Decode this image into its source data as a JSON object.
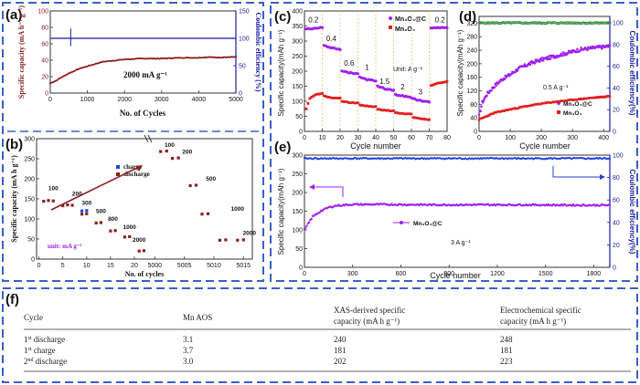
{
  "colors": {
    "frame_blue": "#3a5fc8",
    "dark_red": "#8b1a1a",
    "red": "#e02020",
    "purple": "#a020f0",
    "navy": "#1a1aa0",
    "blue": "#1f3fe0",
    "green": "#2e8b3a",
    "brown": "#8b2020"
  },
  "chart_data": [
    {
      "panel": "(a)",
      "type": "line",
      "xlabel": "No. of Cycles",
      "ylabel": "Specific capacity (mA h⁻¹ g⁻¹)",
      "y2label": "Coulombic efficiency (%)",
      "annotation": "2000 mA g⁻¹",
      "xlim": [
        0,
        5000
      ],
      "ylim": [
        0,
        100
      ],
      "y2lim": [
        0,
        150
      ],
      "xticks": [
        "0",
        "1000",
        "2000",
        "3000",
        "4000",
        "5000"
      ],
      "yticks": [
        "0",
        "20",
        "40",
        "60",
        "80",
        "100"
      ],
      "y2ticks": [
        "0",
        "50",
        "100",
        "150"
      ],
      "series": [
        {
          "name": "capacity",
          "x": [
            0,
            150,
            300,
            500,
            800,
            1100,
            1400,
            1600,
            1800,
            2000,
            2500,
            3000,
            3500,
            4000,
            4300,
            4500,
            4800,
            5000
          ],
          "values": [
            12,
            15,
            19,
            24,
            30,
            34,
            38,
            39,
            40,
            41,
            42,
            42,
            43,
            43,
            44,
            43,
            44,
            44
          ]
        },
        {
          "name": "efficiency",
          "x": [
            0,
            1000,
            2000,
            3000,
            4000,
            5000
          ],
          "values": [
            100,
            100,
            100,
            100,
            100,
            100
          ]
        }
      ]
    },
    {
      "panel": "(b)",
      "type": "scatter",
      "xlabel": "No. of cycles",
      "ylabel": "Specific capacity (mA h g⁻¹)",
      "unit_note": "unit: mA g⁻¹",
      "ylim": [
        0,
        300
      ],
      "xticks": [
        "0",
        "5",
        "10",
        "15",
        "20",
        "5000",
        "5005",
        "5010",
        "5015"
      ],
      "yticks": [
        "0",
        "50",
        "100",
        "150",
        "200",
        "250",
        "300"
      ],
      "legend": [
        "charge",
        "discharge"
      ],
      "rate_labels": [
        "100",
        "200",
        "300",
        "500",
        "800",
        "1000",
        "2000",
        "100",
        "200",
        "500",
        "1000",
        "2000"
      ],
      "series": [
        {
          "name": "discharge",
          "x": [
            1,
            2,
            3,
            5,
            6,
            7,
            9,
            10,
            12,
            13,
            15,
            16,
            18,
            19,
            21,
            22,
            5001,
            5002,
            5003,
            5004,
            5006,
            5007,
            5008,
            5009,
            5011,
            5012,
            5014,
            5015
          ],
          "values": [
            144,
            146,
            145,
            133,
            135,
            134,
            112,
            113,
            90,
            91,
            70,
            71,
            55,
            56,
            20,
            21,
            268,
            269,
            251,
            252,
            183,
            184,
            112,
            113,
            47,
            48,
            47,
            48
          ]
        },
        {
          "name": "charge",
          "x": [
            9,
            10
          ],
          "values": [
            110,
            111
          ]
        }
      ]
    },
    {
      "panel": "(c)",
      "type": "scatter",
      "xlabel": "Cycle number",
      "ylabel": "Specific capacity(mAh g⁻¹)",
      "annotation": "Unit: A g⁻¹",
      "xlim": [
        0,
        80
      ],
      "ylim": [
        0,
        400
      ],
      "xticks": [
        "0",
        "10",
        "20",
        "30",
        "40",
        "50",
        "60",
        "70",
        "80"
      ],
      "yticks": [
        "0",
        "50",
        "100",
        "150",
        "200",
        "250",
        "300",
        "350",
        "400"
      ],
      "rate_labels": [
        "0.2",
        "0.4",
        "0.6",
        "1",
        "1.5",
        "2",
        "3",
        "0.2"
      ],
      "series": [
        {
          "name": "Mn₃O₄@C",
          "x": [
            1,
            5,
            10,
            11,
            15,
            20,
            21,
            25,
            30,
            31,
            35,
            40,
            41,
            45,
            50,
            51,
            55,
            60,
            61,
            65,
            70,
            71,
            75,
            80
          ],
          "values": [
            340,
            342,
            345,
            285,
            278,
            272,
            200,
            195,
            192,
            180,
            172,
            168,
            150,
            142,
            137,
            122,
            118,
            112,
            108,
            102,
            98,
            342,
            344,
            345
          ]
        },
        {
          "name": "Mn₃O₄",
          "x": [
            1,
            3,
            6,
            10,
            11,
            15,
            20,
            21,
            25,
            30,
            31,
            35,
            40,
            41,
            45,
            50,
            51,
            55,
            60,
            61,
            65,
            70,
            71,
            75,
            80
          ],
          "values": [
            75,
            110,
            122,
            125,
            118,
            112,
            110,
            100,
            96,
            94,
            88,
            84,
            82,
            73,
            70,
            68,
            62,
            59,
            57,
            46,
            42,
            38,
            152,
            160,
            165
          ]
        }
      ]
    },
    {
      "panel": "(d)",
      "type": "scatter",
      "xlabel": "Cycle number",
      "ylabel": "Specific capacity(mAh g⁻¹)",
      "y2label": "Coulombic efficiency(%)",
      "annotation": "0.5 A g⁻¹",
      "xlim": [
        0,
        420
      ],
      "ylim": [
        0,
        340
      ],
      "y2lim": [
        0,
        106
      ],
      "xticks": [
        "0",
        "100",
        "200",
        "300",
        "400"
      ],
      "yticks": [
        "0",
        "40",
        "80",
        "120",
        "160",
        "200",
        "240",
        "280",
        "320"
      ],
      "y2ticks": [
        "0",
        "20",
        "40",
        "60",
        "80",
        "100"
      ],
      "series": [
        {
          "name": "Mn₃O₄@C",
          "x": [
            0,
            10,
            25,
            50,
            75,
            100,
            125,
            150,
            175,
            200,
            225,
            250,
            275,
            300,
            325,
            350,
            375,
            400,
            420
          ],
          "values": [
            45,
            85,
            110,
            135,
            155,
            168,
            185,
            195,
            205,
            212,
            218,
            224,
            230,
            236,
            242,
            245,
            248,
            250,
            252
          ]
        },
        {
          "name": "Mn₃O₄",
          "x": [
            0,
            25,
            50,
            100,
            150,
            200,
            250,
            300,
            350,
            400,
            420
          ],
          "values": [
            35,
            45,
            55,
            65,
            74,
            82,
            88,
            93,
            98,
            102,
            104
          ]
        },
        {
          "name": "efficiency",
          "x": [
            0,
            100,
            200,
            300,
            400,
            420
          ],
          "values": [
            100,
            100,
            100,
            100,
            100,
            100
          ]
        }
      ]
    },
    {
      "panel": "(e)",
      "type": "scatter",
      "xlabel": "Cycle number",
      "ylabel": "Specific capacity(mAh g⁻¹)",
      "y2label": "Coulombic efficiency(%)",
      "annotation": "3 A g⁻¹",
      "xlim": [
        0,
        1900
      ],
      "ylim": [
        0,
        300
      ],
      "y2lim": [
        0,
        100
      ],
      "xticks": [
        "0",
        "300",
        "600",
        "900",
        "1200",
        "1500",
        "1800"
      ],
      "yticks": [
        "0",
        "50",
        "100",
        "150",
        "200",
        "250",
        "300"
      ],
      "y2ticks": [
        "0",
        "20",
        "40",
        "60",
        "80",
        "100"
      ],
      "series": [
        {
          "name": "Mn₃O₄@C",
          "x": [
            0,
            50,
            100,
            150,
            200,
            300,
            500,
            800,
            1100,
            1400,
            1700,
            1900
          ],
          "values": [
            100,
            135,
            150,
            160,
            165,
            168,
            168,
            167,
            167,
            167,
            166,
            166
          ]
        },
        {
          "name": "efficiency",
          "x": [
            0,
            500,
            1000,
            1500,
            1900
          ],
          "values": [
            100,
            100,
            100,
            100,
            100
          ]
        }
      ]
    },
    {
      "panel": "(f)",
      "type": "table",
      "columns": [
        "Cycle",
        "Mn AOS",
        "XAS-derived specific capacity (mA h g⁻¹)",
        "Electrochemical specific capacity (mA h g⁻¹)"
      ],
      "rows": [
        [
          "1st discharge",
          "3.1",
          "240",
          "248"
        ],
        [
          "1st charge",
          "3.7",
          "181",
          "181"
        ],
        [
          "2nd discharge",
          "3.0",
          "202",
          "223"
        ]
      ]
    }
  ],
  "text": {
    "a": {
      "label": "(a)",
      "ylabel": "Specific capacity (mA h⁻¹ g⁻¹)",
      "y2label": "Coulombic efficiency (%)",
      "xlabel": "No. of Cycles",
      "note": "2000 mA g⁻¹"
    },
    "b": {
      "label": "(b)",
      "ylabel": "Specific capacity (mA h g⁻¹)",
      "xlabel": "No. of cycles",
      "unit": "unit: mA g⁻¹",
      "charge": "charge",
      "discharge": "discharge"
    },
    "c": {
      "label": "(c)",
      "ylabel": "Specific capacity(mAh g⁻¹)",
      "xlabel": "Cycle number",
      "unit": "Unit: A g⁻¹",
      "leg1": "Mn₃O₄@C",
      "leg2": "Mn₃O₄"
    },
    "d": {
      "label": "(d)",
      "ylabel": "Specific capacity(mAh g⁻¹)",
      "y2label": "Coulombic efficiency(%)",
      "xlabel": "Cycle number",
      "note": "0.5 A g⁻¹",
      "leg1": "Mn₃O₄@C",
      "leg2": "Mn₃O₄"
    },
    "e": {
      "label": "(e)",
      "ylabel": "Specific capacity(mAh g⁻¹)",
      "y2label": "Coulombic efficiency(%)",
      "xlabel": "Cycle number",
      "note": "3 A g⁻¹",
      "leg1": "Mn₃O₄@C"
    },
    "f": {
      "label": "(f)",
      "col1": "Cycle",
      "col2": "Mn AOS",
      "col3a": "XAS-derived specific",
      "col3b": "capacity (mA h g⁻¹)",
      "col4a": "Electrochemical specific",
      "col4b": "capacity (mA h g⁻¹)"
    }
  }
}
